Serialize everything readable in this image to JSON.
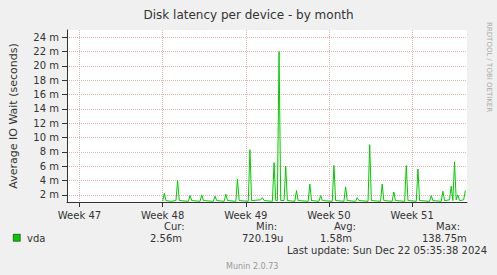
{
  "chart_data": {
    "type": "line",
    "title": "Disk latency per device - by month",
    "y_label": "Average IO Wait (seconds)",
    "x": [
      48.0,
      48.02,
      48.04,
      48.1,
      48.16,
      48.18,
      48.2,
      48.31,
      48.33,
      48.35,
      48.45,
      48.47,
      48.49,
      48.61,
      48.63,
      48.65,
      48.74,
      48.76,
      48.78,
      48.88,
      48.9,
      48.92,
      49.03,
      49.05,
      49.07,
      49.18,
      49.2,
      49.22,
      49.32,
      49.34,
      49.36,
      49.38,
      49.4,
      49.42,
      49.46,
      49.48,
      49.5,
      49.59,
      49.61,
      49.63,
      49.75,
      49.77,
      49.79,
      49.88,
      49.9,
      49.92,
      50.04,
      50.06,
      50.08,
      50.18,
      50.2,
      50.22,
      50.32,
      50.34,
      50.36,
      50.47,
      50.49,
      50.51,
      50.62,
      50.64,
      50.66,
      50.76,
      50.78,
      50.8,
      50.91,
      50.93,
      50.95,
      51.05,
      51.07,
      51.09,
      51.21,
      51.23,
      51.25,
      51.35,
      51.37,
      51.39,
      51.45,
      51.47,
      51.49,
      51.51,
      51.53,
      51.55,
      51.57,
      51.62,
      51.64
    ],
    "series": [
      {
        "name": "vda",
        "color": "#00cc00",
        "values": [
          0.0011,
          0.0022,
          0.0012,
          0.0011,
          0.0012,
          0.004,
          0.0012,
          0.0011,
          0.0019,
          0.0012,
          0.0011,
          0.002,
          0.0012,
          0.0011,
          0.0018,
          0.0012,
          0.0011,
          0.0021,
          0.0012,
          0.0011,
          0.0042,
          0.0012,
          0.0011,
          0.0083,
          0.0012,
          0.0013,
          0.0016,
          0.0012,
          0.0011,
          0.0065,
          0.0012,
          0.0012,
          0.022,
          0.0012,
          0.0012,
          0.006,
          0.0012,
          0.0011,
          0.0026,
          0.0012,
          0.0011,
          0.0035,
          0.0012,
          0.0011,
          0.0019,
          0.0012,
          0.0011,
          0.0061,
          0.0012,
          0.0011,
          0.0031,
          0.0012,
          0.0011,
          0.0016,
          0.0012,
          0.0011,
          0.009,
          0.0012,
          0.0011,
          0.0035,
          0.0012,
          0.0011,
          0.0024,
          0.0012,
          0.0011,
          0.0061,
          0.0012,
          0.0011,
          0.0056,
          0.0012,
          0.0011,
          0.0019,
          0.0012,
          0.0011,
          0.0025,
          0.0012,
          0.0013,
          0.0032,
          0.0012,
          0.0066,
          0.0013,
          0.002,
          0.0012,
          0.0013,
          0.0026
        ]
      }
    ],
    "xlim": [
      46.85,
      51.66
    ],
    "xticks": [
      {
        "value": 47,
        "label": "Week 47"
      },
      {
        "value": 48,
        "label": "Week 48"
      },
      {
        "value": 49,
        "label": "Week 49"
      },
      {
        "value": 50,
        "label": "Week 50"
      },
      {
        "value": 51,
        "label": "Week 51"
      }
    ],
    "ylim": [
      0.001,
      0.025
    ],
    "yticks": [
      {
        "value": 0.002,
        "label": "2 m"
      },
      {
        "value": 0.004,
        "label": "4 m"
      },
      {
        "value": 0.006,
        "label": "6 m"
      },
      {
        "value": 0.008,
        "label": "8 m"
      },
      {
        "value": 0.01,
        "label": "10 m"
      },
      {
        "value": 0.012,
        "label": "12 m"
      },
      {
        "value": 0.014,
        "label": "14 m"
      },
      {
        "value": 0.016,
        "label": "16 m"
      },
      {
        "value": 0.018,
        "label": "18 m"
      },
      {
        "value": 0.02,
        "label": "20 m"
      },
      {
        "value": 0.022,
        "label": "22 m"
      },
      {
        "value": 0.024,
        "label": "24 m"
      }
    ],
    "grid": true,
    "summary": {
      "columns": [
        "Cur:",
        "Min:",
        "Avg:",
        "Max:"
      ],
      "values": [
        "2.56m",
        "720.19u",
        "1.58m",
        "138.75m"
      ]
    },
    "footer": "Last update: Sun Dec 22 05:35:38 2024",
    "credit": "Munin 2.0.73",
    "side_text": "RRDTOOL / TOBI OETIKER"
  }
}
